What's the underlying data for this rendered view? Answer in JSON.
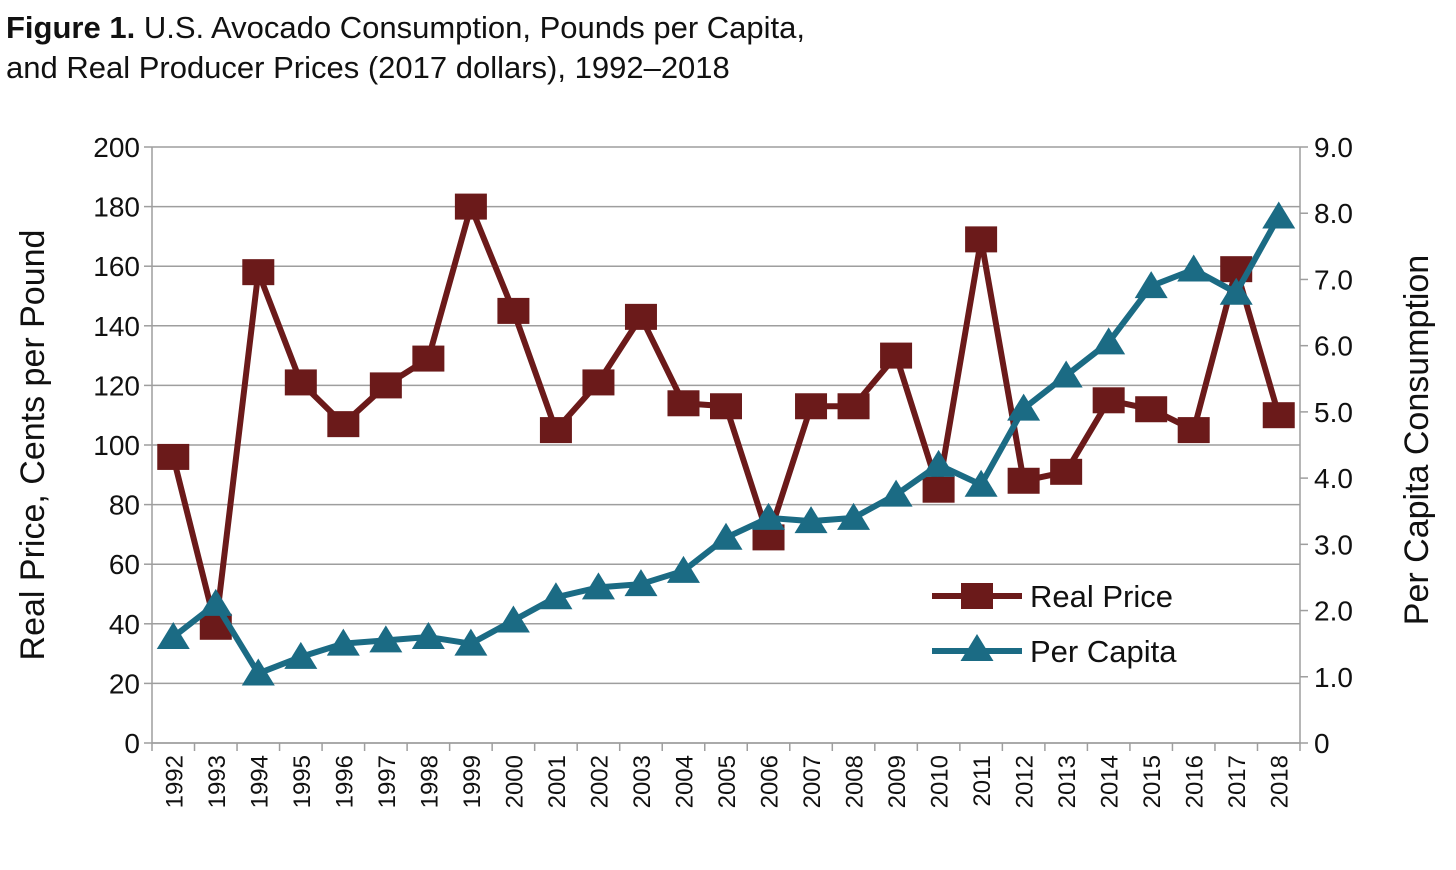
{
  "title_prefix": "Figure 1.",
  "title_line1": "U.S. Avocado Consumption, Pounds per Capita,",
  "title_line2": "and Real Producer Prices (2017 dollars), 1992–2018",
  "colors": {
    "price": "#6b1a1a",
    "per_capita": "#1b6b84",
    "grid": "#9e9e9e",
    "axis": "#9e9e9e"
  },
  "chart_data": {
    "type": "line",
    "title": "U.S. Avocado Consumption, Pounds per Capita, and Real Producer Prices (2017 dollars), 1992–2018",
    "ylabel": "Real Price, Cents per Pound",
    "y2label": "Per Capita Consumption",
    "ylim": [
      0,
      200
    ],
    "y2lim": [
      0,
      9
    ],
    "yticks": [
      "0",
      "20",
      "40",
      "60",
      "80",
      "100",
      "120",
      "140",
      "160",
      "180",
      "200"
    ],
    "y2ticks": [
      "0",
      "1.0",
      "2.0",
      "3.0",
      "4.0",
      "5.0",
      "6.0",
      "7.0",
      "8.0",
      "9.0"
    ],
    "grid": true,
    "legend_position": "bottom-right",
    "categories": [
      "1992",
      "1993",
      "1994",
      "1995",
      "1996",
      "1997",
      "1998",
      "1999",
      "2000",
      "2001",
      "2002",
      "2003",
      "2004",
      "2005",
      "2006",
      "2007",
      "2008",
      "2009",
      "2010",
      "2011",
      "2012",
      "2013",
      "2014",
      "2015",
      "2016",
      "2017",
      "2018"
    ],
    "series": [
      {
        "name": "Real Price",
        "axis": "left",
        "marker": "square",
        "values": [
          96,
          39,
          158,
          121,
          107,
          120,
          129,
          180,
          145,
          105,
          121,
          143,
          114,
          113,
          69,
          113,
          113,
          130,
          85,
          169,
          88,
          91,
          115,
          112,
          105,
          159,
          110
        ]
      },
      {
        "name": "Per Capita",
        "axis": "right",
        "marker": "triangle",
        "values": [
          1.6,
          2.1,
          1.05,
          1.3,
          1.5,
          1.55,
          1.6,
          1.5,
          1.85,
          2.2,
          2.35,
          2.4,
          2.6,
          3.1,
          3.4,
          3.35,
          3.4,
          3.75,
          4.2,
          3.9,
          5.05,
          5.55,
          6.05,
          6.9,
          7.15,
          6.8,
          7.95
        ]
      }
    ]
  }
}
